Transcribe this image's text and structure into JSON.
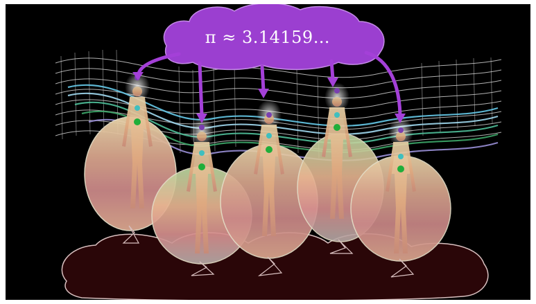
{
  "formula": "π ≈ 3.14159…",
  "colors": {
    "background": "#000000",
    "top_cloud": "#9b3fd0",
    "bottom_cloud": "#2a0608",
    "arrow": "#a440d8",
    "grid": "#d8d8d8"
  },
  "figures_count": 5
}
